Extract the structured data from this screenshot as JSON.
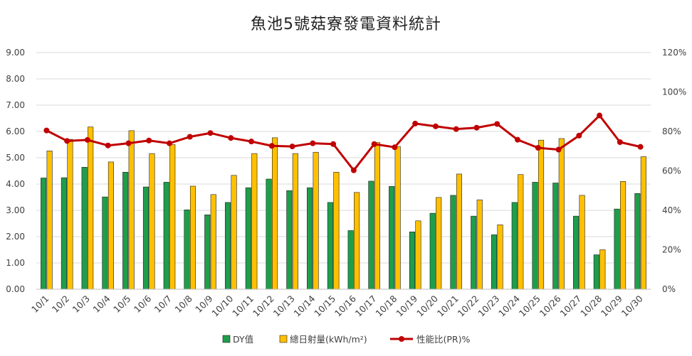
{
  "chart_data": {
    "type": "bar",
    "title": "魚池5號菇寮發電資料統計",
    "categories": [
      "10/1",
      "10/2",
      "10/3",
      "10/4",
      "10/5",
      "10/6",
      "10/7",
      "10/8",
      "10/9",
      "10/10",
      "10/11",
      "10/12",
      "10/13",
      "10/14",
      "10/15",
      "10/16",
      "10/17",
      "10/18",
      "10/19",
      "10/20",
      "10/21",
      "10/22",
      "10/23",
      "10/24",
      "10/25",
      "10/26",
      "10/27",
      "10/28",
      "10/29",
      "10/30"
    ],
    "series": [
      {
        "name": "DY值",
        "type": "bar",
        "axis": "left",
        "color": "#1e9e4a",
        "values": [
          4.23,
          4.24,
          4.64,
          3.51,
          4.45,
          3.89,
          4.07,
          3.02,
          2.83,
          3.3,
          3.86,
          4.19,
          3.75,
          3.86,
          3.3,
          2.23,
          4.11,
          3.91,
          2.18,
          2.89,
          3.57,
          2.78,
          2.07,
          3.3,
          4.07,
          4.04,
          2.78,
          1.31,
          3.05,
          3.64
        ]
      },
      {
        "name": "總日射量(kWh/m²)",
        "type": "bar",
        "axis": "left",
        "color": "#ffc000",
        "values": [
          5.26,
          5.7,
          6.17,
          4.84,
          6.03,
          5.16,
          5.5,
          3.92,
          3.6,
          4.33,
          5.16,
          5.76,
          5.16,
          5.21,
          4.45,
          3.68,
          5.58,
          5.43,
          2.6,
          3.49,
          4.38,
          3.4,
          2.45,
          4.36,
          5.67,
          5.73,
          3.57,
          1.5,
          4.1,
          5.04
        ]
      },
      {
        "name": "性能比(PR)%",
        "type": "line",
        "axis": "right",
        "color": "#c00000",
        "values": [
          80.5,
          75.2,
          75.7,
          72.9,
          74.0,
          75.4,
          74.0,
          77.3,
          79.2,
          76.7,
          74.9,
          72.7,
          72.4,
          74.0,
          73.6,
          60.3,
          73.6,
          72.0,
          84.0,
          82.6,
          81.2,
          81.9,
          83.8,
          75.8,
          71.7,
          70.8,
          77.9,
          88.1,
          74.6,
          72.2
        ]
      }
    ],
    "y_left": {
      "min": 0,
      "max": 9,
      "step": 1,
      "tick_labels": [
        "0.00",
        "1.00",
        "2.00",
        "3.00",
        "4.00",
        "5.00",
        "6.00",
        "7.00",
        "8.00",
        "9.00"
      ]
    },
    "y_right": {
      "min": 0,
      "max": 120,
      "step": 20,
      "tick_labels": [
        "0%",
        "20%",
        "40%",
        "60%",
        "80%",
        "100%",
        "120%"
      ]
    },
    "grid": true,
    "legend_position": "bottom"
  }
}
